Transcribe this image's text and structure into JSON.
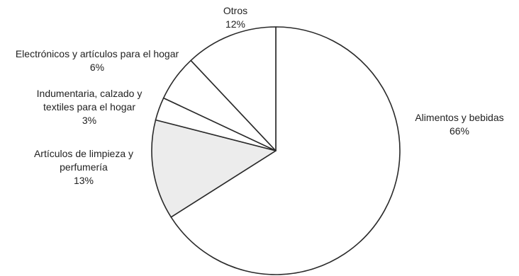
{
  "chart_data": {
    "type": "pie",
    "start": "12 o'clock, clockwise",
    "slices": [
      {
        "label_lines": [
          "Alimentos y bebidas"
        ],
        "value_label": "66%",
        "value": 66,
        "fill": "#ffffff"
      },
      {
        "label_lines": [
          "Artículos de limpieza y",
          "perfumería"
        ],
        "value_label": "13%",
        "value": 13,
        "fill": "#ececec"
      },
      {
        "label_lines": [
          "Indumentaria, calzado y",
          "textiles para el hogar"
        ],
        "value_label": "3%",
        "value": 3,
        "fill": "#ffffff"
      },
      {
        "label_lines": [
          "Electrónicos y artículos para el hogar"
        ],
        "value_label": "6%",
        "value": 6,
        "fill": "#ffffff"
      },
      {
        "label_lines": [
          "Otros"
        ],
        "value_label": "12%",
        "value": 12,
        "fill": "#ffffff"
      }
    ],
    "edge_color": "#2a2a2a"
  }
}
